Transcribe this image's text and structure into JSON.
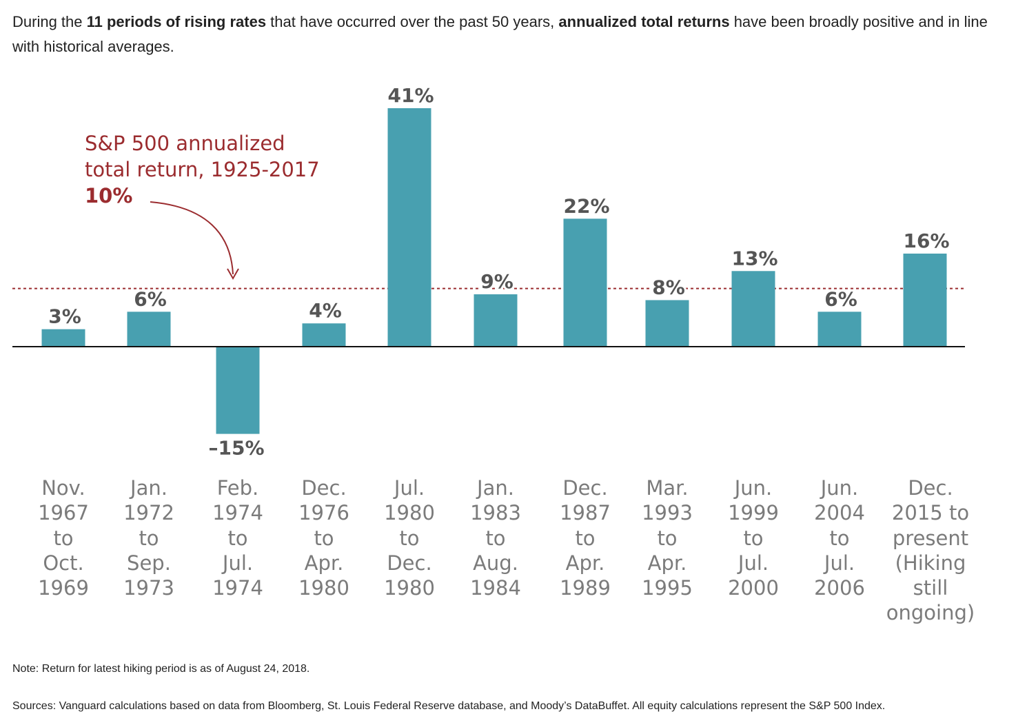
{
  "headline": {
    "pre": "During the ",
    "bold1": "11 periods of rising rates",
    "mid": " that have occurred over the past 50 years, ",
    "bold2": "annualized total returns",
    "post": " have been broadly positive and in line with historical averages."
  },
  "annotation": {
    "line1": "S&P 500 annualized",
    "line2": "total return, 1925-2017",
    "value": "10%"
  },
  "colors": {
    "bar": "#48a0b0",
    "reference": "#9b2c2f",
    "baseline": "#111111",
    "label": "#555555",
    "period": "#7b7b7b"
  },
  "chart_data": {
    "type": "bar",
    "title": "",
    "xlabel": "",
    "ylabel": "",
    "ylim": [
      -15,
      41
    ],
    "reference_line": {
      "value": 10,
      "label": "S&P 500 annualized total return, 1925-2017"
    },
    "categories": [
      [
        "Nov.",
        "1967",
        "to",
        "Oct.",
        "1969"
      ],
      [
        "Jan.",
        "1972",
        "to",
        "Sep.",
        "1973"
      ],
      [
        "Feb.",
        "1974",
        "to",
        "Jul.",
        "1974"
      ],
      [
        "Dec.",
        "1976",
        "to",
        "Apr.",
        "1980"
      ],
      [
        "Jul.",
        "1980",
        "to",
        "Dec.",
        "1980"
      ],
      [
        "Jan.",
        "1983",
        "to",
        "Aug.",
        "1984"
      ],
      [
        "Dec.",
        "1987",
        "to",
        "Apr.",
        "1989"
      ],
      [
        "Mar.",
        "1993",
        "to",
        "Apr.",
        "1995"
      ],
      [
        "Jun.",
        "1999",
        "to",
        "Jul.",
        "2000"
      ],
      [
        "Jun.",
        "2004",
        "to",
        "Jul.",
        "2006"
      ],
      [
        "Dec.",
        "2015 to",
        "present",
        "(Hiking",
        "still",
        "ongoing)"
      ]
    ],
    "values": [
      3,
      6,
      -15,
      4,
      41,
      9,
      22,
      8,
      13,
      6,
      16
    ],
    "value_labels": [
      "3%",
      "6%",
      "–15%",
      "4%",
      "41%",
      "9%",
      "22%",
      "8%",
      "13%",
      "6%",
      "16%"
    ]
  },
  "note": "Note: Return for latest hiking period is as of August 24, 2018.",
  "sources": "Sources: Vanguard calculations based on data from Bloomberg, St. Louis Federal Reserve database, and Moody’s DataBuffet. All equity calculations represent the S&P 500 Index."
}
